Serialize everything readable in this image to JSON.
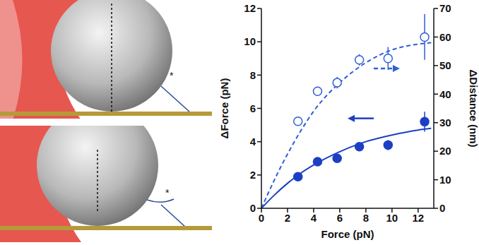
{
  "diagram": {
    "tether_marks": [
      "*",
      "*"
    ]
  },
  "chart_data": {
    "type": "scatter",
    "x_label": "Force (pN)",
    "y_label": "ΔForce (pN)",
    "y2_label": "ΔDistance (nm)",
    "xlim": [
      0,
      13.2
    ],
    "xticks": [
      0,
      2,
      4,
      6,
      8,
      10,
      12
    ],
    "ylim": [
      0,
      12
    ],
    "yticks": [
      0,
      2,
      4,
      6,
      8,
      10,
      12
    ],
    "y2lim": [
      0,
      70
    ],
    "y2ticks": [
      0,
      10,
      20,
      30,
      40,
      50,
      60,
      70
    ],
    "grid": false,
    "series": [
      {
        "type": "scatter",
        "marker": "filled_circle",
        "color": "#1c3fc4",
        "x": [
          2.8,
          4.3,
          5.8,
          7.5,
          9.7,
          12.5
        ],
        "values": [
          1.9,
          2.8,
          3.0,
          3.7,
          3.8,
          5.2
        ],
        "errors": [
          0.2,
          0.2,
          0.2,
          0.2,
          0.3,
          0.6
        ]
      },
      {
        "type": "scatter",
        "marker": "open_circle",
        "axis": "y2",
        "color": "#2f5fd6",
        "x": [
          2.8,
          4.3,
          5.8,
          7.5,
          9.7,
          12.5
        ],
        "values": [
          30.5,
          41,
          44,
          52,
          52.5,
          60
        ],
        "errors": [
          1,
          1.5,
          2,
          2,
          4,
          8
        ]
      },
      {
        "type": "line",
        "line_style": "solid",
        "color": "#1c3fc4",
        "x": [
          0,
          1,
          2,
          3,
          4,
          6,
          8,
          10,
          12,
          13
        ],
        "values": [
          0,
          0.8,
          1.5,
          2.1,
          2.6,
          3.4,
          4.0,
          4.4,
          4.7,
          4.8
        ]
      },
      {
        "type": "line",
        "line_style": "dashed",
        "axis": "y2",
        "color": "#2f5fd6",
        "x": [
          0,
          1,
          2,
          3,
          4,
          6,
          8,
          10,
          12,
          13
        ],
        "values": [
          0,
          10,
          19,
          27,
          34,
          44,
          51,
          55.5,
          57.5,
          58
        ]
      }
    ]
  }
}
